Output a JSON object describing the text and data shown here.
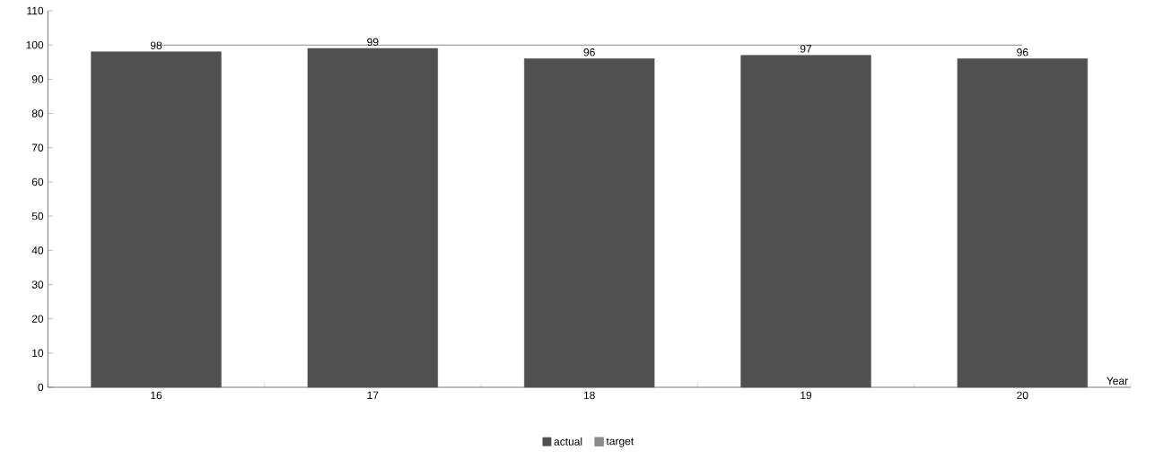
{
  "chart_data": {
    "type": "bar",
    "xlabel": "Year",
    "categories": [
      "16",
      "17",
      "18",
      "19",
      "20"
    ],
    "series": [
      {
        "name": "actual",
        "color": "#505050",
        "values": [
          98,
          99,
          96,
          97,
          96
        ],
        "value_labels": [
          "98",
          "99",
          "96",
          "97",
          "96"
        ]
      },
      {
        "name": "target",
        "type": "line",
        "color": "#8a8a8a",
        "values": [
          100,
          100,
          100,
          100,
          100
        ],
        "marker": "none",
        "line_style": "solid"
      }
    ],
    "ylim": [
      0,
      110
    ],
    "yticks": [
      0,
      10,
      20,
      30,
      40,
      50,
      60,
      70,
      80,
      90,
      100,
      110
    ],
    "legend": "bottom",
    "grid": false
  }
}
